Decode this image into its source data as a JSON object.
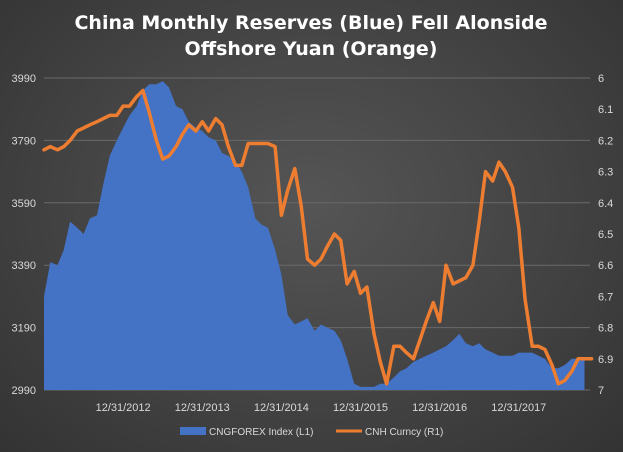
{
  "chart_data": {
    "type": "area+line",
    "title_lines": [
      "China Monthly Reserves (Blue) Fell Alonside",
      "Offshore Yuan (Orange)"
    ],
    "x_labels": [
      "12/31/2012",
      "12/31/2013",
      "12/31/2014",
      "12/31/2015",
      "12/31/2016",
      "12/31/2017"
    ],
    "y_left": {
      "ticks": [
        "3990",
        "3790",
        "3590",
        "3390",
        "3190",
        "2990"
      ],
      "min": 2990,
      "max": 3990
    },
    "y_right": {
      "ticks": [
        "6",
        "6.1",
        "6.2",
        "6.3",
        "6.4",
        "6.5",
        "6.6",
        "6.7",
        "6.8",
        "6.9",
        "7"
      ],
      "min": 6.0,
      "max": 7.0,
      "inverted": true
    },
    "x_range_years": [
      2012.0,
      2018.9
    ],
    "grid": "horizontal",
    "legend_position": "bottom",
    "series": [
      {
        "name": "CNGFOREX Index  (L1)",
        "axis": "left",
        "kind": "area",
        "color": "#4472C4",
        "x": [
          2012.0,
          2012.08,
          2012.17,
          2012.25,
          2012.33,
          2012.42,
          2012.5,
          2012.58,
          2012.67,
          2012.75,
          2012.83,
          2012.92,
          2013.0,
          2013.08,
          2013.17,
          2013.25,
          2013.33,
          2013.42,
          2013.5,
          2013.58,
          2013.67,
          2013.75,
          2013.83,
          2013.92,
          2014.0,
          2014.08,
          2014.17,
          2014.25,
          2014.33,
          2014.42,
          2014.5,
          2014.58,
          2014.67,
          2014.75,
          2014.83,
          2014.92,
          2015.0,
          2015.08,
          2015.17,
          2015.25,
          2015.33,
          2015.42,
          2015.5,
          2015.58,
          2015.67,
          2015.75,
          2015.83,
          2015.92,
          2016.0,
          2016.08,
          2016.17,
          2016.25,
          2016.33,
          2016.42,
          2016.5,
          2016.58,
          2016.67,
          2016.75,
          2016.83,
          2016.92,
          2017.0,
          2017.08,
          2017.17,
          2017.25,
          2017.33,
          2017.42,
          2017.5,
          2017.58,
          2017.67,
          2017.75,
          2017.83,
          2017.92,
          2018.0,
          2018.08,
          2018.17,
          2018.25,
          2018.33,
          2018.42,
          2018.5,
          2018.58,
          2018.67,
          2018.75,
          2018.83
        ],
        "values": [
          3290,
          3400,
          3390,
          3440,
          3530,
          3510,
          3490,
          3540,
          3550,
          3650,
          3740,
          3790,
          3830,
          3870,
          3900,
          3950,
          3970,
          3970,
          3980,
          3960,
          3900,
          3890,
          3850,
          3830,
          3820,
          3800,
          3790,
          3750,
          3740,
          3720,
          3690,
          3640,
          3540,
          3520,
          3510,
          3440,
          3360,
          3230,
          3200,
          3210,
          3220,
          3180,
          3200,
          3190,
          3180,
          3150,
          3090,
          3010,
          3000,
          3000,
          3000,
          3010,
          3010,
          3030,
          3050,
          3060,
          3080,
          3090,
          3100,
          3110,
          3120,
          3130,
          3150,
          3170,
          3140,
          3130,
          3140,
          3120,
          3110,
          3100,
          3100,
          3100,
          3110,
          3110,
          3110,
          3100,
          3090,
          3060,
          3060,
          3070,
          3090,
          3090,
          3090
        ]
      },
      {
        "name": "CNH Curncy  (R1)",
        "axis": "right",
        "kind": "line",
        "color": "#ED7D31",
        "x": [
          2012.0,
          2012.08,
          2012.17,
          2012.25,
          2012.33,
          2012.42,
          2012.5,
          2012.58,
          2012.67,
          2012.75,
          2012.83,
          2012.92,
          2013.0,
          2013.08,
          2013.17,
          2013.25,
          2013.33,
          2013.42,
          2013.5,
          2013.58,
          2013.67,
          2013.75,
          2013.83,
          2013.92,
          2014.0,
          2014.08,
          2014.17,
          2014.25,
          2014.33,
          2014.42,
          2014.5,
          2014.58,
          2014.67,
          2014.75,
          2014.83,
          2014.92,
          2015.0,
          2015.08,
          2015.17,
          2015.25,
          2015.33,
          2015.42,
          2015.5,
          2015.58,
          2015.67,
          2015.75,
          2015.83,
          2015.92,
          2016.0,
          2016.08,
          2016.17,
          2016.25,
          2016.33,
          2016.42,
          2016.5,
          2016.58,
          2016.67,
          2016.75,
          2016.83,
          2016.92,
          2017.0,
          2017.08,
          2017.17,
          2017.25,
          2017.33,
          2017.42,
          2017.5,
          2017.58,
          2017.67,
          2017.75,
          2017.83,
          2017.92,
          2018.0,
          2018.08,
          2018.17,
          2018.25,
          2018.33,
          2018.42,
          2018.5,
          2018.58,
          2018.67,
          2018.75,
          2018.83,
          2018.92
        ],
        "values": [
          6.23,
          6.22,
          6.23,
          6.22,
          6.2,
          6.17,
          6.16,
          6.15,
          6.14,
          6.13,
          6.12,
          6.12,
          6.09,
          6.09,
          6.06,
          6.04,
          6.11,
          6.2,
          6.26,
          6.25,
          6.22,
          6.18,
          6.15,
          6.17,
          6.14,
          6.17,
          6.13,
          6.15,
          6.22,
          6.28,
          6.28,
          6.21,
          6.21,
          6.21,
          6.21,
          6.22,
          6.44,
          6.36,
          6.29,
          6.41,
          6.58,
          6.6,
          6.58,
          6.54,
          6.5,
          6.52,
          6.66,
          6.62,
          6.69,
          6.67,
          6.82,
          6.91,
          6.98,
          6.86,
          6.86,
          6.88,
          6.9,
          6.84,
          6.78,
          6.72,
          6.78,
          6.6,
          6.66,
          6.65,
          6.64,
          6.6,
          6.46,
          6.3,
          6.33,
          6.27,
          6.3,
          6.35,
          6.48,
          6.71,
          6.86,
          6.86,
          6.87,
          6.92,
          6.98,
          6.97,
          6.94,
          6.9,
          6.9,
          6.9
        ]
      }
    ]
  }
}
